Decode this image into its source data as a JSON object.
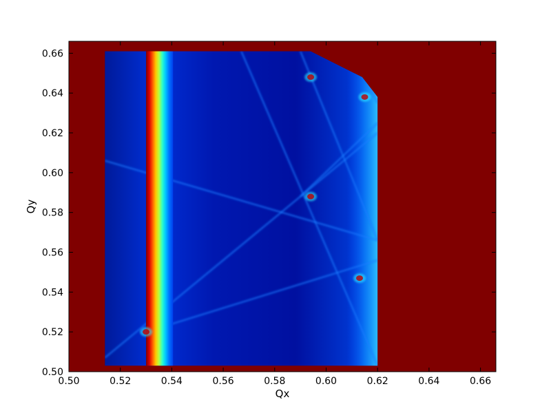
{
  "chart_data": {
    "type": "heatmap",
    "title": "",
    "xlabel": "Qx",
    "ylabel": "Qy",
    "xlim": [
      0.5,
      0.666
    ],
    "ylim": [
      0.5,
      0.666
    ],
    "x_ticks": [
      0.5,
      0.52,
      0.54,
      0.56,
      0.58,
      0.6,
      0.62,
      0.64,
      0.66
    ],
    "x_tick_labels": [
      "0.50",
      "0.52",
      "0.54",
      "0.56",
      "0.58",
      "0.60",
      "0.62",
      "0.64",
      "0.66"
    ],
    "y_ticks": [
      0.5,
      0.52,
      0.54,
      0.56,
      0.58,
      0.6,
      0.62,
      0.64,
      0.66
    ],
    "y_tick_labels": [
      "0.50",
      "0.52",
      "0.54",
      "0.56",
      "0.58",
      "0.60",
      "0.62",
      "0.64",
      "0.66"
    ],
    "colormap": "jet",
    "background_color": "#800000",
    "regions": {
      "stable_region": {
        "x_min": 0.514,
        "y_min": 0.503,
        "y_max": 0.661,
        "right_edge": [
          [
            0.594,
            0.661
          ],
          [
            0.614,
            0.648
          ],
          [
            0.62,
            0.638
          ],
          [
            0.62,
            0.503
          ]
        ]
      },
      "hot_band": {
        "x": 0.5325,
        "half_width": 0.0025
      },
      "vertical_resonances": [
        0.517,
        0.564,
        0.584,
        0.595,
        0.613
      ],
      "diagonal_resonances": [
        {
          "from": [
            0.514,
            0.507
          ],
          "to": [
            0.62,
            0.62
          ]
        },
        {
          "from": [
            0.53,
            0.52
          ],
          "to": [
            0.62,
            0.556
          ]
        },
        {
          "from": [
            0.59,
            0.661
          ],
          "to": [
            0.62,
            0.566
          ]
        },
        {
          "from": [
            0.514,
            0.606
          ],
          "to": [
            0.62,
            0.566
          ]
        },
        {
          "from": [
            0.567,
            0.661
          ],
          "to": [
            0.62,
            0.503
          ]
        },
        {
          "from": [
            0.61,
            0.661
          ],
          "to": [
            0.62,
            0.635
          ]
        },
        {
          "from": [
            0.59,
            0.588
          ],
          "to": [
            0.62,
            0.625
          ]
        }
      ],
      "hot_spots": [
        {
          "x": 0.53,
          "y": 0.52
        },
        {
          "x": 0.594,
          "y": 0.588
        },
        {
          "x": 0.594,
          "y": 0.648
        },
        {
          "x": 0.615,
          "y": 0.638
        },
        {
          "x": 0.613,
          "y": 0.547
        }
      ]
    }
  }
}
